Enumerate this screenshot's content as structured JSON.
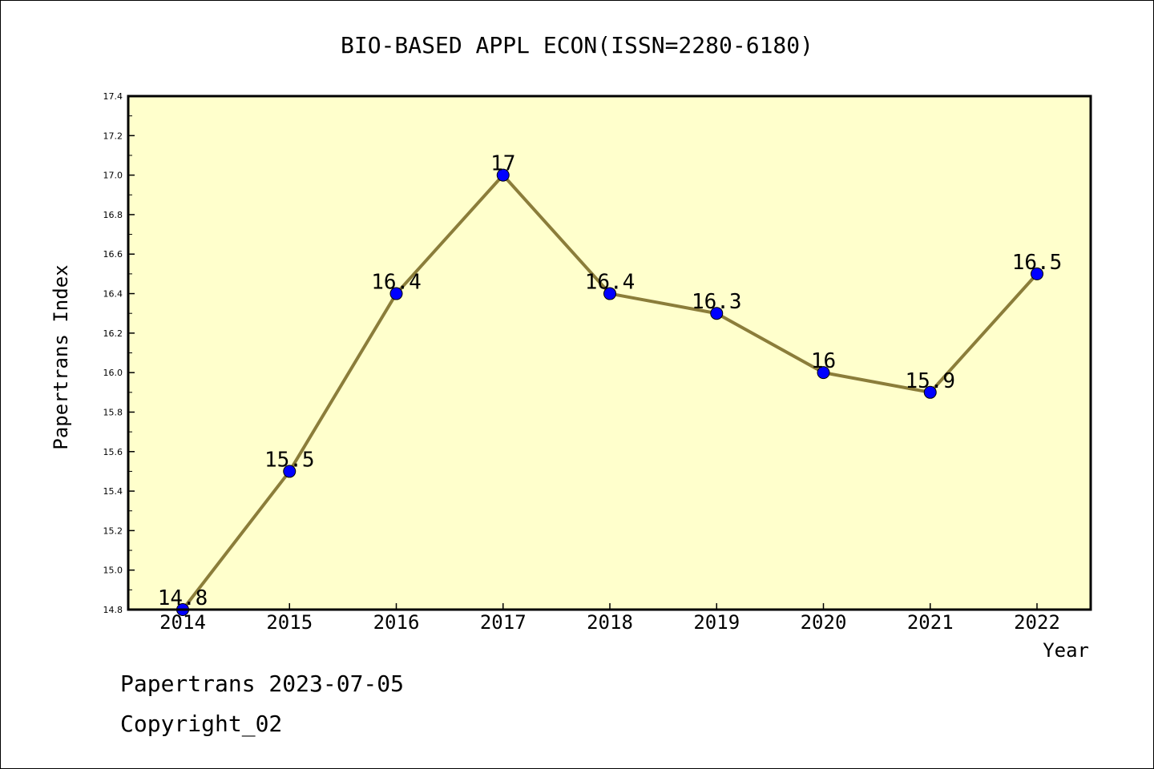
{
  "chart_data": {
    "type": "line",
    "title": "BIO-BASED APPL ECON(ISSN=2280-6180)",
    "xlabel": "Year",
    "ylabel": "Papertrans Index",
    "categories": [
      "2014",
      "2015",
      "2016",
      "2017",
      "2018",
      "2019",
      "2020",
      "2021",
      "2022"
    ],
    "series": [
      {
        "values": [
          14.8,
          15.5,
          16.4,
          17,
          16.4,
          16.3,
          16,
          15.9,
          16.5
        ],
        "data_labels": [
          "14.8",
          "15.5",
          "16.4",
          "17",
          "16.4",
          "16.3",
          "16",
          "15.9",
          "16.5"
        ]
      }
    ],
    "ylim": [
      14.8,
      17.4
    ],
    "yticks": [
      "14.8",
      "15.0",
      "15.2",
      "15.4",
      "15.6",
      "15.8",
      "16.0",
      "16.2",
      "16.4",
      "16.6",
      "16.8",
      "17.0",
      "17.2",
      "17.4"
    ],
    "grid": false,
    "legend": "none",
    "colors": {
      "plot_background": "#ffffcc",
      "line": "#8b7d3a",
      "marker": "#0000ff"
    }
  },
  "footer": {
    "line1": "Papertrans 2023-07-05",
    "line2": "Copyright_02"
  }
}
